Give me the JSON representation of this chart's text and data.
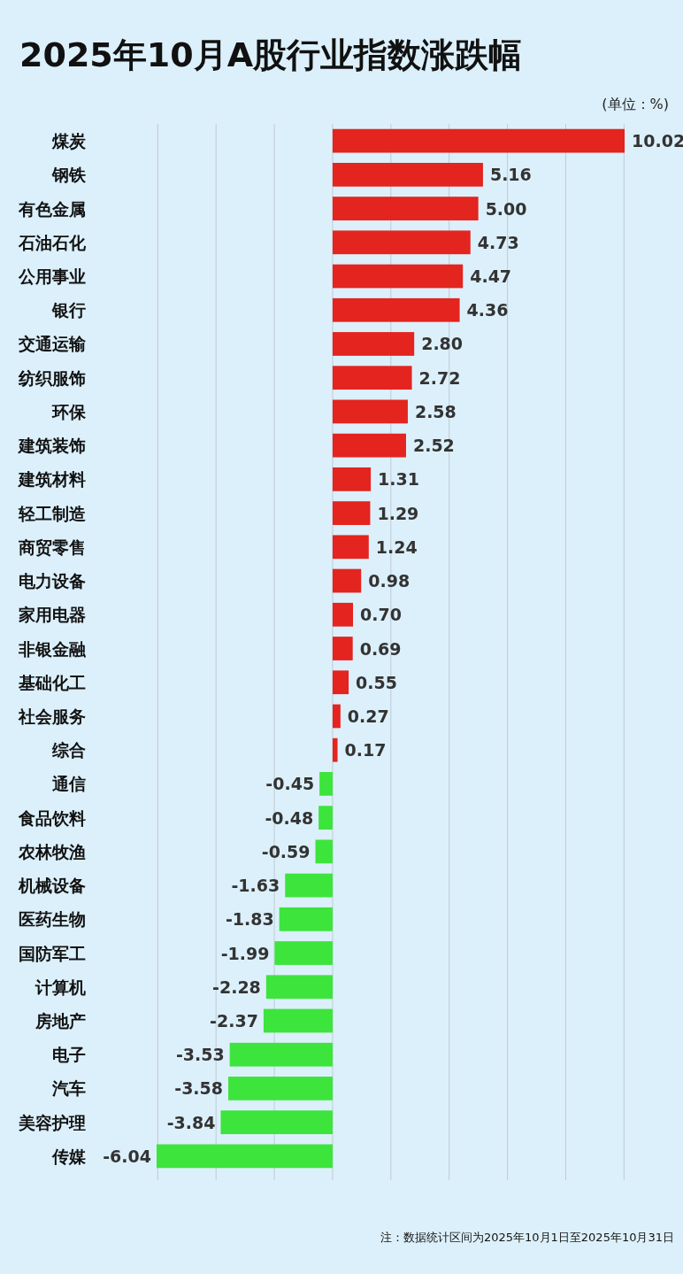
{
  "chart_data": {
    "type": "bar",
    "orientation": "horizontal",
    "title": "2025年10月A股行业指数涨跌幅",
    "subtitle": "(单位：%)",
    "categories": [
      "煤炭",
      "钢铁",
      "有色金属",
      "石油石化",
      "公用事业",
      "银行",
      "交通运输",
      "纺织服饰",
      "环保",
      "建筑装饰",
      "建筑材料",
      "轻工制造",
      "商贸零售",
      "电力设备",
      "家用电器",
      "非银金融",
      "基础化工",
      "社会服务",
      "综合",
      "通信",
      "食品饮料",
      "农林牧渔",
      "机械设备",
      "医药生物",
      "国防军工",
      "计算机",
      "房地产",
      "电子",
      "汽车",
      "美容护理",
      "传媒"
    ],
    "values": [
      10.02,
      5.16,
      5.0,
      4.73,
      4.47,
      4.36,
      2.8,
      2.72,
      2.58,
      2.52,
      1.31,
      1.29,
      1.24,
      0.98,
      0.7,
      0.69,
      0.55,
      0.27,
      0.17,
      -0.45,
      -0.48,
      -0.59,
      -1.63,
      -1.83,
      -1.99,
      -2.28,
      -2.37,
      -3.53,
      -3.58,
      -3.84,
      -6.04
    ],
    "value_labels": [
      "10.02",
      "5.16",
      "5.00",
      "4.73",
      "4.47",
      "4.36",
      "2.80",
      "2.72",
      "2.58",
      "2.52",
      "1.31",
      "1.29",
      "1.24",
      "0.98",
      "0.70",
      "0.69",
      "0.55",
      "0.27",
      "0.17",
      "-0.45",
      "-0.48",
      "-0.59",
      "-1.63",
      "-1.83",
      "-1.99",
      "-2.28",
      "-2.37",
      "-3.53",
      "-3.58",
      "-3.84",
      "-6.04"
    ],
    "colors": [
      "#e3241f",
      "#e3241f",
      "#e3241f",
      "#e3241f",
      "#e3241f",
      "#e3241f",
      "#e3241f",
      "#e3241f",
      "#e3241f",
      "#e3241f",
      "#e3241f",
      "#e3241f",
      "#e3241f",
      "#e3241f",
      "#e3241f",
      "#e3241f",
      "#e3241f",
      "#e3241f",
      "#e3241f",
      "#3ce43c",
      "#3ce43c",
      "#3ce43c",
      "#3ce43c",
      "#3ce43c",
      "#3ce43c",
      "#3ce43c",
      "#3ce43c",
      "#3ce43c",
      "#3ce43c",
      "#3ce43c",
      "#3ce43c"
    ],
    "xticks": [
      {
        "value": -6,
        "label": null
      },
      {
        "value": -4,
        "label": null
      },
      {
        "value": -2,
        "label": null
      },
      {
        "value": 0,
        "label": null
      },
      {
        "value": 2,
        "label": null
      },
      {
        "value": 4,
        "label": null
      },
      {
        "value": 6,
        "label": null
      },
      {
        "value": 8,
        "label": null
      },
      {
        "value": 10,
        "label": null
      }
    ],
    "grid": "x",
    "tick_labels": "y",
    "annotations": [
      "注：数据统计区间为2025年10月1日至2025年10月31日"
    ]
  }
}
